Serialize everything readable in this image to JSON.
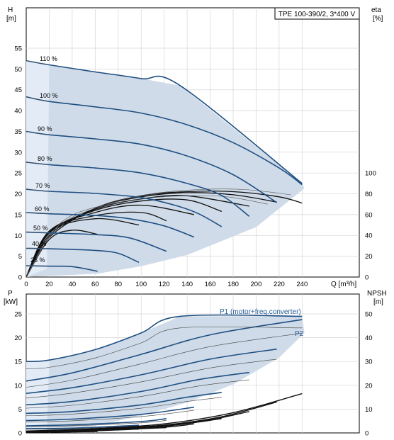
{
  "chart_data": [
    {
      "type": "line",
      "title": "TPE 100-390/2, 3*400 V",
      "xlabel": "Q [m³/h]",
      "ylabel_left": "H\n[m]",
      "ylabel_right": "eta\n[%]",
      "xlim": [
        0,
        250
      ],
      "ylim_left": [
        0,
        58
      ],
      "ylim_right": [
        0,
        136
      ],
      "x_ticks": [
        0,
        20,
        40,
        60,
        80,
        100,
        120,
        140,
        160,
        180,
        200,
        220,
        240
      ],
      "y_ticks_left": [
        0,
        5,
        10,
        15,
        20,
        25,
        30,
        35,
        40,
        45,
        50,
        55
      ],
      "y_ticks_right": [
        0,
        20,
        40,
        60,
        80,
        100
      ],
      "grid": true,
      "speed_curves": [
        {
          "name": "110 %",
          "x": [
            0,
            20,
            60,
            100,
            134,
            240
          ],
          "y": [
            52,
            51,
            49.3,
            47.7,
            46,
            22.5
          ]
        },
        {
          "name": "100 %",
          "x": [
            0,
            20,
            60,
            100,
            140,
            180,
            220,
            240
          ],
          "y": [
            43.3,
            42.2,
            40.9,
            39.4,
            36.6,
            32.3,
            26.2,
            22.2
          ]
        },
        {
          "name": "90 %",
          "x": [
            0,
            20,
            60,
            100,
            140,
            180,
            218
          ],
          "y": [
            35,
            34.2,
            33.2,
            31.9,
            29.1,
            24.6,
            17.9
          ]
        },
        {
          "name": "80 %",
          "x": [
            0,
            20,
            60,
            100,
            140,
            170,
            194
          ],
          "y": [
            27.6,
            27,
            26.2,
            25,
            22.5,
            19.6,
            14.6
          ]
        },
        {
          "name": "70 %",
          "x": [
            0,
            20,
            60,
            100,
            130,
            150,
            170
          ],
          "y": [
            21.1,
            20.6,
            20.1,
            19.1,
            17.2,
            15.2,
            12.1
          ]
        },
        {
          "name": "60 %",
          "x": [
            0,
            20,
            60,
            90,
            120,
            146
          ],
          "y": [
            15.5,
            15.2,
            14.8,
            14,
            12.3,
            9.6
          ]
        },
        {
          "name": "50 %",
          "x": [
            0,
            20,
            60,
            90,
            122
          ],
          "y": [
            10.8,
            10.6,
            10.2,
            9.4,
            6.2
          ]
        },
        {
          "name": "40 %",
          "x": [
            0,
            20,
            60,
            80,
            98
          ],
          "y": [
            6.9,
            6.8,
            6.4,
            5.7,
            3.5
          ]
        },
        {
          "name": "25 %",
          "x": [
            0,
            20,
            40,
            62
          ],
          "y": [
            2.7,
            2.6,
            2.5,
            1.4
          ]
        }
      ],
      "eta_curves": [
        {
          "x": [
            0,
            20,
            60,
            100,
            140,
            180,
            220,
            240
          ],
          "y": [
            0,
            38,
            66,
            78,
            82,
            82,
            77,
            71
          ]
        },
        {
          "x": [
            0,
            20,
            60,
            100,
            140,
            180,
            218
          ],
          "y": [
            0,
            40,
            66,
            77,
            81,
            79,
            72
          ]
        },
        {
          "x": [
            0,
            20,
            60,
            100,
            140,
            194
          ],
          "y": [
            0,
            42,
            65,
            75,
            78,
            68
          ]
        },
        {
          "x": [
            0,
            20,
            60,
            100,
            140,
            170
          ],
          "y": [
            0,
            43,
            64,
            73,
            74,
            63
          ]
        },
        {
          "x": [
            0,
            20,
            60,
            100,
            146
          ],
          "y": [
            0,
            44,
            62,
            69,
            60
          ]
        },
        {
          "x": [
            0,
            20,
            60,
            100,
            122
          ],
          "y": [
            0,
            44,
            59,
            62,
            54
          ]
        },
        {
          "x": [
            0,
            20,
            60,
            98
          ],
          "y": [
            0,
            43,
            56,
            50
          ]
        },
        {
          "x": [
            0,
            20,
            40,
            62
          ],
          "y": [
            0,
            36,
            45,
            41
          ]
        }
      ],
      "curve_labels": [
        "110 %",
        "100 %",
        "90 %",
        "80 %",
        "70 %",
        "60 %",
        "50 %",
        "40 %",
        "25 %"
      ]
    },
    {
      "type": "line",
      "xlabel": "",
      "ylabel_left": "P\n[kW]",
      "ylabel_right": "NPSH\n[m]",
      "xlim": [
        0,
        250
      ],
      "ylim_left": [
        0,
        28.5
      ],
      "ylim_right": [
        0,
        57
      ],
      "y_ticks_left": [
        0,
        5,
        10,
        15,
        20,
        25
      ],
      "y_ticks_right": [
        0,
        10,
        20,
        30,
        40,
        50
      ],
      "grid": true,
      "series_labels": [
        "P1 (motor+freq.converter)",
        "P2"
      ],
      "power_curves": [
        {
          "x": [
            0,
            20,
            60,
            100,
            134,
            240
          ],
          "y": [
            15,
            15.3,
            17.5,
            21,
            24.5,
            24.5
          ]
        },
        {
          "x": [
            0,
            40,
            100,
            160,
            240
          ],
          "y": [
            10.9,
            12.6,
            16.5,
            20.6,
            23.8
          ]
        },
        {
          "x": [
            0,
            40,
            100,
            160,
            218
          ],
          "y": [
            8.3,
            9.5,
            12.2,
            15.5,
            17.6
          ]
        },
        {
          "x": [
            0,
            40,
            100,
            150,
            194
          ],
          "y": [
            5.9,
            6.6,
            8.7,
            11.2,
            12.7
          ]
        },
        {
          "x": [
            0,
            40,
            100,
            140,
            170
          ],
          "y": [
            4.1,
            4.5,
            5.9,
            7.5,
            8.5
          ]
        },
        {
          "x": [
            0,
            40,
            100,
            146
          ],
          "y": [
            2.6,
            2.9,
            3.9,
            5.4
          ]
        },
        {
          "x": [
            0,
            40,
            100,
            122
          ],
          "y": [
            1.5,
            1.7,
            2.4,
            3.0
          ]
        },
        {
          "x": [
            0,
            40,
            98
          ],
          "y": [
            0.9,
            1.0,
            1.6
          ]
        },
        {
          "x": [
            0,
            40,
            62
          ],
          "y": [
            0.2,
            0.25,
            0.35
          ]
        }
      ],
      "npsh_curves": [
        {
          "x": [
            0,
            60,
            120,
            180,
            240
          ],
          "y": [
            0.8,
            1.8,
            3.8,
            8.5,
            16.5
          ]
        },
        {
          "x": [
            0,
            60,
            120,
            170,
            218
          ],
          "y": [
            0.7,
            1.6,
            3.3,
            6.8,
            13.0
          ]
        },
        {
          "x": [
            0,
            60,
            120,
            160,
            194
          ],
          "y": [
            0.6,
            1.4,
            3.0,
            5.5,
            9.0
          ]
        },
        {
          "x": [
            0,
            60,
            120,
            170
          ],
          "y": [
            0.5,
            1.3,
            2.8,
            6.0
          ]
        },
        {
          "x": [
            0,
            60,
            120,
            146
          ],
          "y": [
            0.4,
            1.1,
            2.4,
            3.8
          ]
        },
        {
          "x": [
            0,
            60,
            122
          ],
          "y": [
            0.3,
            1.0,
            2.2
          ]
        },
        {
          "x": [
            0,
            60,
            98
          ],
          "y": [
            0.3,
            0.9,
            1.6
          ]
        },
        {
          "x": [
            0,
            62
          ],
          "y": [
            0.2,
            0.6
          ]
        }
      ]
    }
  ]
}
